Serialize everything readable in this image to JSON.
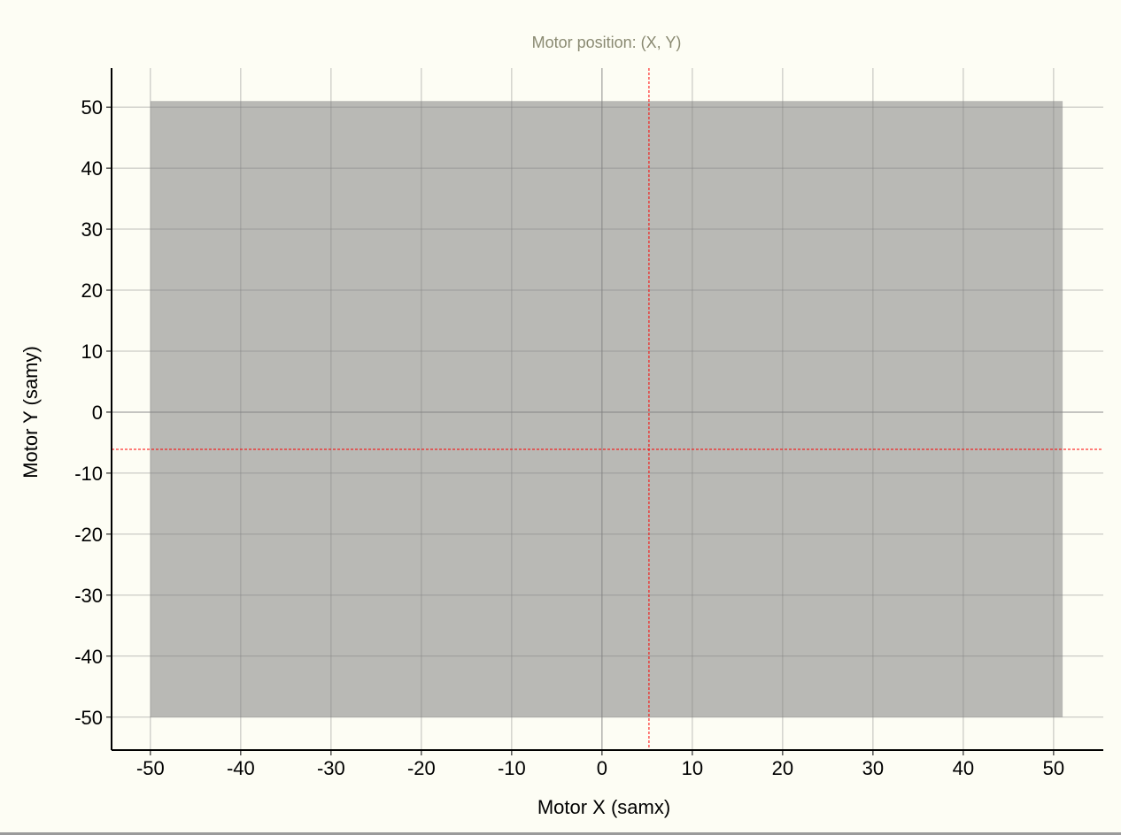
{
  "chart_data": {
    "type": "scatter",
    "title": "Motor position: (X, Y)",
    "xlabel": "Motor X (samx)",
    "ylabel": "Motor Y (samy)",
    "xlim": [
      -54.3,
      55.5
    ],
    "ylim": [
      -55.4,
      56.4
    ],
    "xticks": [
      -50,
      -40,
      -30,
      -20,
      -10,
      0,
      10,
      20,
      30,
      40,
      50
    ],
    "yticks": [
      -50,
      -40,
      -30,
      -20,
      -10,
      0,
      10,
      20,
      30,
      40,
      50
    ],
    "grid": true,
    "limits_region": {
      "x": [
        -50,
        51
      ],
      "y": [
        -50,
        51
      ],
      "color": "#b9b9b5"
    },
    "crosshair": {
      "x": 5.2,
      "y": -6.1,
      "color": "#ff0000"
    },
    "colors": {
      "title": "#8a8a72",
      "grid": "#808080",
      "axis": "#000000"
    }
  }
}
